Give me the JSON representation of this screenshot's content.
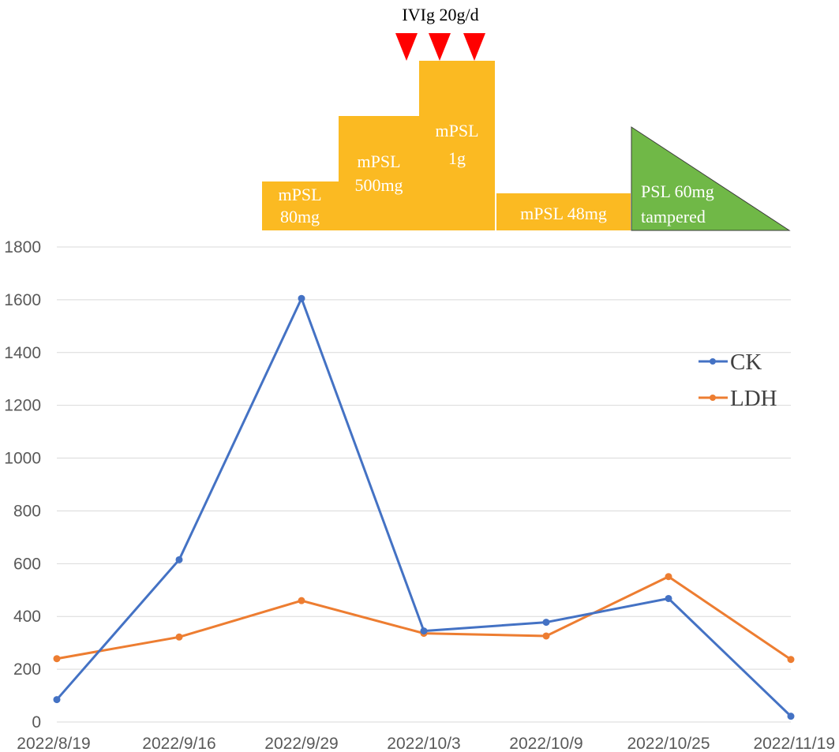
{
  "colors": {
    "ck": "#4472C4",
    "ldh": "#ED7D31",
    "steroid_box": "#FBBA22",
    "psl_taper": "#70B847",
    "ivig_marker": "#FF0000",
    "grid": "#D9D9D9"
  },
  "treatment": {
    "ivig_label": "IVIg 20g/d",
    "ivig_doses": 3,
    "boxes": [
      {
        "line1": "mPSL",
        "line2": "80mg"
      },
      {
        "line1": "mPSL",
        "line2": "500mg"
      },
      {
        "line1": "mPSL",
        "line2": "1g"
      },
      {
        "line1": "mPSL 48mg",
        "line2": ""
      }
    ],
    "taper": {
      "line1": "PSL 60mg",
      "line2": "tampered"
    }
  },
  "chart_data": {
    "type": "line",
    "categories": [
      "2022/8/19",
      "2022/9/16",
      "2022/9/29",
      "2022/10/3",
      "2022/10/9",
      "2022/10/25",
      "2022/11/19"
    ],
    "series": [
      {
        "name": "CK",
        "values": [
          85,
          615,
          1605,
          345,
          378,
          468,
          22
        ]
      },
      {
        "name": "LDH",
        "values": [
          240,
          322,
          460,
          336,
          326,
          551,
          237
        ]
      }
    ],
    "ylim": [
      0,
      1800
    ],
    "yticks": [
      0,
      200,
      400,
      600,
      800,
      1000,
      1200,
      1400,
      1600,
      1800
    ],
    "grid": true,
    "legend_position": "right"
  }
}
